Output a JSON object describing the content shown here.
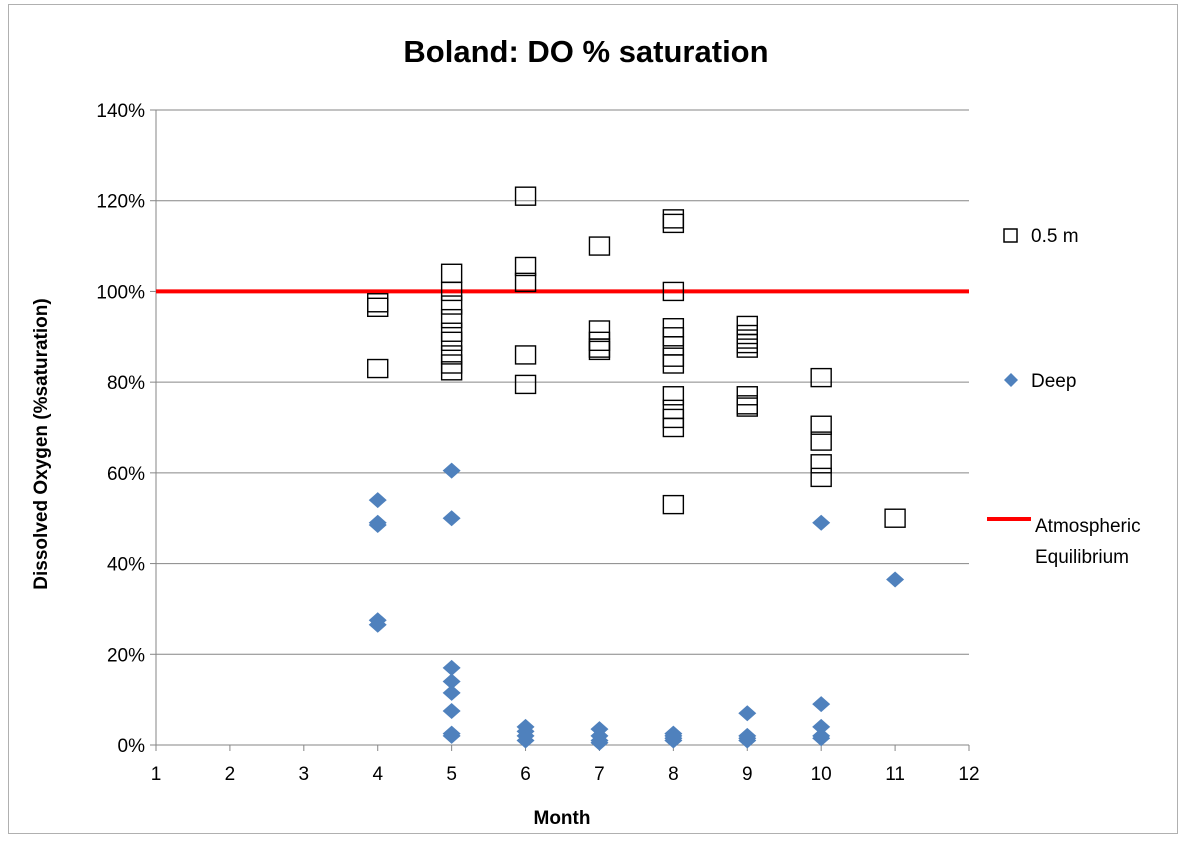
{
  "chart_data": {
    "type": "scatter",
    "title": "Boland:  DO % saturation",
    "xlabel": "Month",
    "ylabel": "Dissolved Oxygen (%saturation)",
    "xlim": [
      1,
      12
    ],
    "ylim": [
      0,
      140
    ],
    "x_ticks": [
      "1",
      "2",
      "3",
      "4",
      "5",
      "6",
      "7",
      "8",
      "9",
      "10",
      "11",
      "12"
    ],
    "y_ticks": [
      "0%",
      "20%",
      "40%",
      "60%",
      "80%",
      "100%",
      "120%",
      "140%"
    ],
    "grid": true,
    "legend_position": "right",
    "series": [
      {
        "name": "0.5 m",
        "marker": "open-square",
        "color": "#000000",
        "points": [
          [
            4,
            97.5
          ],
          [
            4,
            96.5
          ],
          [
            4,
            83
          ],
          [
            5,
            104
          ],
          [
            5,
            100
          ],
          [
            5,
            97
          ],
          [
            5,
            94
          ],
          [
            5,
            91
          ],
          [
            5,
            89
          ],
          [
            5,
            86
          ],
          [
            5,
            84
          ],
          [
            5,
            82.5
          ],
          [
            6,
            121
          ],
          [
            6,
            105.5
          ],
          [
            6,
            102
          ],
          [
            6,
            86
          ],
          [
            6,
            79.5
          ],
          [
            7,
            110
          ],
          [
            7,
            91.5
          ],
          [
            7,
            89
          ],
          [
            7,
            87.5
          ],
          [
            7,
            87
          ],
          [
            8,
            116
          ],
          [
            8,
            115
          ],
          [
            8,
            100
          ],
          [
            8,
            92
          ],
          [
            8,
            90
          ],
          [
            8,
            88
          ],
          [
            8,
            85.5
          ],
          [
            8,
            84
          ],
          [
            8,
            77
          ],
          [
            8,
            74
          ],
          [
            8,
            72
          ],
          [
            8,
            70
          ],
          [
            8,
            53
          ],
          [
            9,
            92.5
          ],
          [
            9,
            90.5
          ],
          [
            9,
            89.5
          ],
          [
            9,
            88.5
          ],
          [
            9,
            87.5
          ],
          [
            9,
            77
          ],
          [
            9,
            75
          ],
          [
            9,
            74.5
          ],
          [
            10,
            81
          ],
          [
            10,
            70.5
          ],
          [
            10,
            67
          ],
          [
            10,
            62
          ],
          [
            10,
            59
          ],
          [
            11,
            50
          ]
        ]
      },
      {
        "name": "Deep",
        "marker": "diamond",
        "color": "#4f81bd",
        "points": [
          [
            4,
            54
          ],
          [
            4,
            49
          ],
          [
            4,
            48.5
          ],
          [
            4,
            27.5
          ],
          [
            4,
            26.5
          ],
          [
            5,
            60.5
          ],
          [
            5,
            50
          ],
          [
            5,
            17
          ],
          [
            5,
            14
          ],
          [
            5,
            11.5
          ],
          [
            5,
            7.5
          ],
          [
            5,
            2.5
          ],
          [
            5,
            2
          ],
          [
            6,
            4
          ],
          [
            6,
            3
          ],
          [
            6,
            2
          ],
          [
            6,
            1
          ],
          [
            7,
            3.5
          ],
          [
            7,
            2
          ],
          [
            7,
            1
          ],
          [
            7,
            0.5
          ],
          [
            8,
            2.5
          ],
          [
            8,
            2
          ],
          [
            8,
            1.5
          ],
          [
            8,
            1
          ],
          [
            9,
            7
          ],
          [
            9,
            2
          ],
          [
            9,
            1.5
          ],
          [
            9,
            1
          ],
          [
            10,
            49
          ],
          [
            10,
            9
          ],
          [
            10,
            4
          ],
          [
            10,
            2
          ],
          [
            10,
            1.5
          ],
          [
            11,
            36.5
          ]
        ]
      },
      {
        "name": "Atmospheric Equilibrium",
        "marker": "line",
        "color": "#ff0000",
        "points": [
          [
            1,
            100
          ],
          [
            12,
            100
          ]
        ]
      }
    ],
    "legend": [
      {
        "label": "0.5 m",
        "marker": "open-square"
      },
      {
        "label": "Deep",
        "marker": "diamond"
      },
      {
        "label_line1": "Atmospheric",
        "label_line2": "Equilibrium",
        "marker": "line"
      }
    ]
  }
}
